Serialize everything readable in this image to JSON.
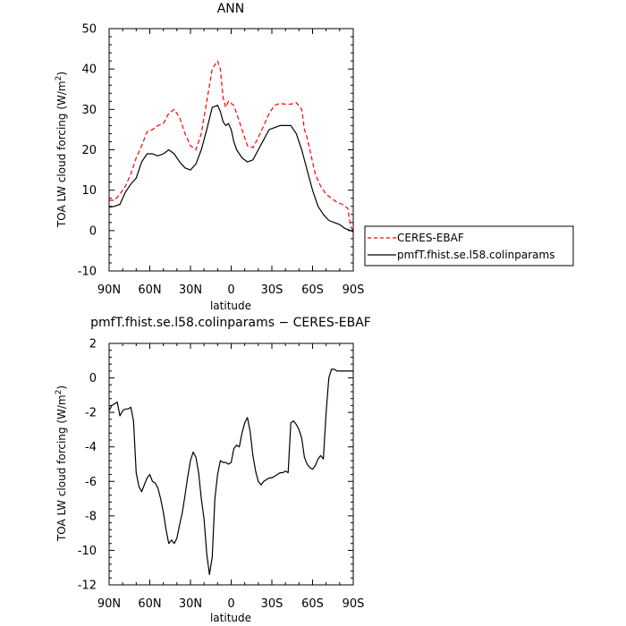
{
  "chart_data": [
    {
      "type": "line",
      "title": "ANN",
      "xlabel": "latitude",
      "ylabel": "TOA LW cloud forcing (W/m²)",
      "ylabel_text": "TOA LW cloud forcing (W/m",
      "ylabel_sup": "2",
      "ylabel_close": ")",
      "xlim": [
        90,
        -90
      ],
      "ylim": [
        -10,
        50
      ],
      "yticks": [
        -10,
        0,
        10,
        20,
        30,
        40,
        50
      ],
      "xticks": [
        {
          "v": 90,
          "label": "90N"
        },
        {
          "v": 60,
          "label": "60N"
        },
        {
          "v": 30,
          "label": "30N"
        },
        {
          "v": 0,
          "label": "0"
        },
        {
          "v": -30,
          "label": "30S"
        },
        {
          "v": -60,
          "label": "60S"
        },
        {
          "v": -90,
          "label": "90S"
        }
      ],
      "legend_position": "right",
      "series": [
        {
          "name": "CERES-EBAF",
          "color": "#ff0000",
          "dash": "dashed",
          "x": [
            90,
            86,
            82,
            78,
            74,
            70,
            66,
            62,
            58,
            54,
            50,
            46,
            42,
            38,
            34,
            30,
            26,
            22,
            18,
            14,
            10,
            8,
            6,
            4,
            2,
            0,
            -2,
            -4,
            -8,
            -12,
            -16,
            -20,
            -24,
            -28,
            -32,
            -36,
            -40,
            -44,
            -48,
            -52,
            -54,
            -56,
            -58,
            -62,
            -66,
            -70,
            -74,
            -78,
            -82,
            -86,
            -88,
            -90
          ],
          "y": [
            7.5,
            7.5,
            9,
            11,
            14,
            18,
            21,
            24.5,
            25,
            26,
            26.5,
            29,
            30,
            28,
            24,
            21,
            20,
            24,
            32,
            40,
            42,
            40,
            33,
            30.5,
            32,
            31.5,
            31,
            29,
            25,
            21,
            20.5,
            23,
            26,
            29,
            31,
            31.5,
            31.3,
            31.3,
            31.7,
            30,
            25,
            23,
            20,
            14,
            11,
            9,
            8,
            7,
            6.5,
            5.5,
            1,
            0
          ]
        },
        {
          "name": "pmfT.fhist.se.l58.colinparams",
          "color": "#000000",
          "dash": "solid",
          "x": [
            90,
            86,
            82,
            78,
            74,
            70,
            66,
            62,
            58,
            54,
            50,
            46,
            42,
            38,
            34,
            30,
            26,
            22,
            18,
            14,
            10,
            8,
            6,
            4,
            2,
            0,
            -2,
            -4,
            -8,
            -12,
            -16,
            -20,
            -24,
            -28,
            -32,
            -36,
            -40,
            -44,
            -48,
            -52,
            -56,
            -60,
            -64,
            -68,
            -72,
            -76,
            -80,
            -84,
            -88,
            -90
          ],
          "y": [
            5.8,
            6,
            6.5,
            9.5,
            11.5,
            13,
            17,
            19,
            19,
            18.5,
            19,
            20,
            19,
            17,
            15.5,
            15,
            16.5,
            20,
            25,
            30.5,
            31,
            29.5,
            27,
            26,
            26.5,
            25,
            22,
            20,
            18,
            17,
            17.5,
            20,
            22.5,
            25,
            25.5,
            26,
            26,
            26,
            24,
            20,
            15,
            10,
            6,
            4,
            2.5,
            2,
            1.5,
            0.5,
            0,
            -0.3
          ]
        }
      ]
    },
    {
      "type": "line",
      "title": "pmfT.fhist.se.l58.colinparams − CERES-EBAF",
      "xlabel": "latitude",
      "ylabel": "TOA LW cloud forcing (W/m²)",
      "ylabel_text": "TOA LW cloud forcing (W/m",
      "ylabel_sup": "2",
      "ylabel_close": ")",
      "xlim": [
        90,
        -90
      ],
      "ylim": [
        -12,
        2
      ],
      "yticks": [
        -12,
        -10,
        -8,
        -6,
        -4,
        -2,
        0,
        2
      ],
      "xticks": [
        {
          "v": 90,
          "label": "90N"
        },
        {
          "v": 60,
          "label": "60N"
        },
        {
          "v": 30,
          "label": "30N"
        },
        {
          "v": 0,
          "label": "0"
        },
        {
          "v": -30,
          "label": "30S"
        },
        {
          "v": -60,
          "label": "60S"
        },
        {
          "v": -90,
          "label": "90S"
        }
      ],
      "series": [
        {
          "color": "#000000",
          "dash": "solid",
          "x": [
            90,
            88,
            86,
            84,
            82,
            80,
            78,
            76,
            74,
            72,
            70,
            68,
            66,
            64,
            62,
            60,
            58,
            56,
            54,
            52,
            50,
            48,
            46,
            44,
            42,
            40,
            38,
            36,
            34,
            32,
            30,
            28,
            26,
            24,
            22,
            20,
            18,
            16,
            14,
            12,
            10,
            8,
            6,
            4,
            2,
            0,
            -2,
            -4,
            -6,
            -8,
            -10,
            -12,
            -14,
            -16,
            -18,
            -20,
            -22,
            -24,
            -26,
            -28,
            -30,
            -32,
            -34,
            -36,
            -38,
            -40,
            -42,
            -44,
            -46,
            -48,
            -50,
            -52,
            -54,
            -56,
            -58,
            -60,
            -62,
            -64,
            -66,
            -68,
            -70,
            -72,
            -74,
            -76,
            -78,
            -80,
            -82,
            -84,
            -86,
            -88,
            -90
          ],
          "y": [
            -1.9,
            -1.6,
            -1.5,
            -1.4,
            -2.2,
            -1.9,
            -1.8,
            -1.8,
            -1.7,
            -2.5,
            -5.5,
            -6.3,
            -6.6,
            -6.2,
            -5.8,
            -5.6,
            -6.0,
            -6.1,
            -6.4,
            -7.0,
            -7.8,
            -8.8,
            -9.6,
            -9.4,
            -9.6,
            -9.3,
            -8.5,
            -7.8,
            -6.8,
            -5.7,
            -4.8,
            -4.3,
            -4.6,
            -5.5,
            -7.0,
            -8.2,
            -10.2,
            -11.4,
            -10.4,
            -7.0,
            -5.6,
            -4.8,
            -4.9,
            -4.9,
            -5.0,
            -4.9,
            -4.1,
            -3.9,
            -4.0,
            -3.2,
            -2.6,
            -2.3,
            -3.1,
            -4.5,
            -5.4,
            -6.0,
            -6.2,
            -6.0,
            -5.9,
            -5.8,
            -5.8,
            -5.7,
            -5.6,
            -5.5,
            -5.5,
            -5.4,
            -5.5,
            -2.6,
            -2.5,
            -2.7,
            -3.0,
            -3.5,
            -4.6,
            -5.0,
            -5.2,
            -5.3,
            -5.1,
            -4.7,
            -4.5,
            -4.7,
            -2.0,
            0.0,
            0.5,
            0.5,
            0.4,
            0.4,
            0.4,
            0.4,
            0.4,
            0.4,
            0.4
          ]
        }
      ]
    }
  ]
}
